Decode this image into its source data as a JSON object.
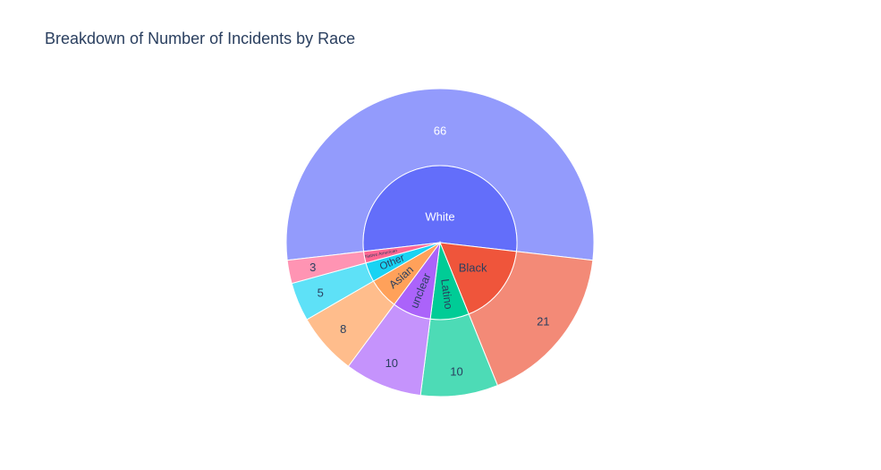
{
  "chart_data": {
    "type": "sunburst",
    "title": "Breakdown of Number of Incidents by Race",
    "children": [
      {
        "label": "White",
        "value": 66,
        "color": "#636efa",
        "outer_color": "#939bfc"
      },
      {
        "label": "Black",
        "value": 21,
        "color": "#ef553b",
        "outer_color": "#f38a77"
      },
      {
        "label": "Latino",
        "value": 10,
        "color": "#00cc96",
        "outer_color": "#4ddbb6"
      },
      {
        "label": "unclear",
        "value": 10,
        "color": "#ab63fa",
        "outer_color": "#c593fc"
      },
      {
        "label": "Asian",
        "value": 8,
        "color": "#ffa15a",
        "outer_color": "#ffbd8c"
      },
      {
        "label": "Other",
        "value": 5,
        "color": "#19d3f3",
        "outer_color": "#5ee1f7"
      },
      {
        "label": "Native American",
        "value": 3,
        "color": "#ff6692",
        "outer_color": "#ff94b3"
      }
    ]
  }
}
